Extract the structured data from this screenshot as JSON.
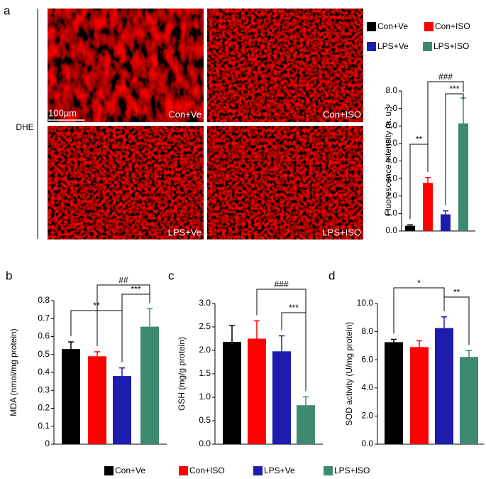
{
  "images": {
    "stain": "DHE",
    "scale_bar": "100μm",
    "panels": [
      "Con+Ve",
      "Con+ISO",
      "LPS+Ve",
      "LPS+ISO"
    ]
  },
  "chart_data": [
    {
      "type": "bar",
      "panel": "a",
      "y_label": "Fluorescence intensity (a. u.)",
      "ylim": [
        0,
        8
      ],
      "yticks": [
        {
          "value": 0,
          "label": "0.0"
        },
        {
          "value": 1,
          "label": "1.0"
        },
        {
          "value": 2,
          "label": "2.0"
        },
        {
          "value": 3,
          "label": "3.0"
        },
        {
          "value": 4,
          "label": "4.0"
        },
        {
          "value": 5,
          "label": "5.0"
        },
        {
          "value": 6,
          "label": "6.0"
        },
        {
          "value": 7,
          "label": "7.0"
        },
        {
          "value": 8,
          "label": "8.0"
        }
      ],
      "series": [
        {
          "name": "Con+Ve",
          "color": "#000000",
          "values": [
            0.3
          ],
          "errors": [
            0.05
          ]
        },
        {
          "name": "Con+ISO",
          "color": "#ff0000",
          "values": [
            2.75
          ],
          "errors": [
            0.3
          ]
        },
        {
          "name": "LPS+Ve",
          "color": "#1c1cae",
          "values": [
            0.95
          ],
          "errors": [
            0.2
          ]
        },
        {
          "name": "LPS+ISO",
          "color": "#3d8a70",
          "values": [
            6.15
          ],
          "errors": [
            1.45
          ]
        }
      ],
      "annotations": [
        "**",
        "###",
        "***"
      ]
    },
    {
      "type": "bar",
      "panel": "b",
      "y_label": "MDA (nmol/mg protein)",
      "ylim": [
        0,
        0.8
      ],
      "yticks": [
        0,
        0.1,
        0.2,
        0.3,
        0.4,
        0.5,
        0.6,
        0.7,
        0.8
      ],
      "series": [
        {
          "name": "Con+Ve",
          "color": "#000000",
          "values": [
            0.53
          ],
          "errors": [
            0.04
          ]
        },
        {
          "name": "Con+ISO",
          "color": "#ff0000",
          "values": [
            0.49
          ],
          "errors": [
            0.025
          ]
        },
        {
          "name": "LPS+Ve",
          "color": "#1c1cae",
          "values": [
            0.38
          ],
          "errors": [
            0.045
          ]
        },
        {
          "name": "LPS+ISO",
          "color": "#3d8a70",
          "values": [
            0.655
          ],
          "errors": [
            0.1
          ]
        }
      ],
      "annotations": [
        "**",
        "##",
        "***"
      ]
    },
    {
      "type": "bar",
      "panel": "c",
      "y_label": "GSH (mg/g protein)",
      "ylim": [
        0,
        3
      ],
      "yticks": [
        {
          "value": 0,
          "label": "0.0"
        },
        0.5,
        {
          "value": 1,
          "label": "1.0"
        },
        1.5,
        {
          "value": 2,
          "label": "2.0"
        },
        2.5,
        {
          "value": 3,
          "label": "3.0"
        }
      ],
      "series": [
        {
          "color": "#000000",
          "values": [
            2.18
          ],
          "errors": [
            0.35
          ]
        },
        {
          "color": "#ff0000",
          "values": [
            2.25
          ],
          "errors": [
            0.38
          ]
        },
        {
          "color": "#1c1cae",
          "values": [
            1.98
          ],
          "errors": [
            0.33
          ]
        },
        {
          "color": "#3d8a70",
          "values": [
            0.83
          ],
          "errors": [
            0.18
          ]
        }
      ],
      "annotations": [
        "###",
        "***"
      ]
    },
    {
      "type": "bar",
      "panel": "d",
      "y_label": "SOD activity (U/mg protein)",
      "ylim": [
        0,
        10
      ],
      "yticks": [
        {
          "value": 0,
          "label": "0.0"
        },
        {
          "value": 2,
          "label": "2.0"
        },
        {
          "value": 4,
          "label": "4.0"
        },
        {
          "value": 6,
          "label": "6.0"
        },
        {
          "value": 8,
          "label": "8.0"
        },
        {
          "value": 10,
          "label": "10.0"
        }
      ],
      "series": [
        {
          "color": "#000000",
          "values": [
            7.25
          ],
          "errors": [
            0.2
          ]
        },
        {
          "color": "#ff0000",
          "values": [
            6.9
          ],
          "errors": [
            0.45
          ]
        },
        {
          "color": "#1c1cae",
          "values": [
            8.25
          ],
          "errors": [
            0.8
          ]
        },
        {
          "color": "#3d8a70",
          "values": [
            6.2
          ],
          "errors": [
            0.45
          ]
        }
      ],
      "annotations": [
        "*",
        "**"
      ]
    }
  ]
}
